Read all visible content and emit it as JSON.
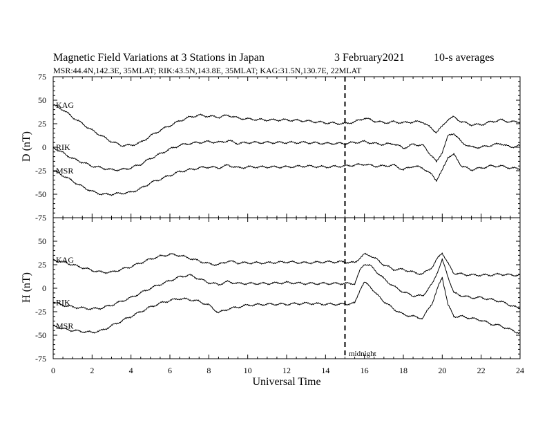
{
  "header": {
    "title": "Magnetic Field Variations at 3 Stations in Japan",
    "date": "3   February2021",
    "averaging": "10-s averages",
    "stations_info": "MSR:44.4N,142.3E, 35MLAT;  RIK:43.5N,143.8E, 35MLAT;  KAG:31.5N,130.7E, 22MLAT"
  },
  "chart_data": [
    {
      "type": "line",
      "ylabel": "D (nT)",
      "ylim": [
        -75,
        75
      ],
      "yticks": [
        75,
        50,
        25,
        0,
        -25,
        -50,
        -75
      ],
      "xlim": [
        0,
        24
      ],
      "series": [
        {
          "name": "KAG",
          "x": [
            0,
            0.5,
            1,
            1.5,
            2,
            2.5,
            3,
            3.5,
            4,
            4.5,
            5,
            5.5,
            6,
            6.5,
            7,
            7.5,
            8,
            8.5,
            9,
            9.5,
            10,
            11,
            12,
            13,
            14,
            15,
            15.5,
            16,
            16.5,
            17,
            17.5,
            18,
            18.5,
            19,
            19.5,
            19.7,
            20,
            20.3,
            20.6,
            21,
            21.5,
            22,
            22.5,
            23,
            23.5,
            24
          ],
          "values": [
            45,
            40,
            32,
            25,
            18,
            12,
            6,
            2,
            2,
            5,
            12,
            18,
            23,
            28,
            32,
            34,
            33,
            32,
            34,
            31,
            30,
            29,
            29,
            28,
            26,
            25,
            27,
            31,
            28,
            26,
            27,
            26,
            27,
            27,
            19,
            16,
            22,
            30,
            32,
            27,
            24,
            24,
            27,
            29,
            27,
            27
          ]
        },
        {
          "name": "RIK",
          "x": [
            0,
            0.5,
            1,
            1.5,
            2,
            2.5,
            3,
            3.5,
            4,
            4.5,
            5,
            5.5,
            6,
            6.5,
            7,
            7.5,
            8,
            8.5,
            9,
            9.5,
            10,
            11,
            12,
            13,
            14,
            15,
            15.5,
            16,
            16.5,
            17,
            17.5,
            18,
            18.5,
            19,
            19.5,
            19.7,
            20,
            20.3,
            20.6,
            21,
            21.5,
            22,
            22.5,
            23,
            23.5,
            24
          ],
          "values": [
            0,
            -6,
            -12,
            -16,
            -20,
            -22,
            -24,
            -24,
            -22,
            -18,
            -12,
            -7,
            -2,
            2,
            4,
            5,
            6,
            5,
            7,
            4,
            5,
            5,
            5,
            5,
            4,
            4,
            5,
            6,
            4,
            3,
            4,
            -1,
            3,
            2,
            -10,
            -16,
            -5,
            12,
            15,
            5,
            0,
            0,
            2,
            4,
            0,
            2
          ]
        },
        {
          "name": "MSR",
          "x": [
            0,
            0.5,
            1,
            1.5,
            2,
            2.5,
            3,
            3.5,
            4,
            4.5,
            5,
            5.5,
            6,
            6.5,
            7,
            7.5,
            8,
            8.5,
            9,
            9.5,
            10,
            11,
            12,
            13,
            14,
            15,
            15.5,
            16,
            16.5,
            17,
            17.5,
            18,
            18.5,
            19,
            19.5,
            19.7,
            20,
            20.3,
            20.6,
            21,
            21.5,
            22,
            22.5,
            23,
            23.5,
            24
          ],
          "values": [
            -25,
            -30,
            -36,
            -42,
            -47,
            -50,
            -50,
            -49,
            -48,
            -44,
            -38,
            -34,
            -30,
            -26,
            -24,
            -22,
            -21,
            -22,
            -19,
            -22,
            -21,
            -21,
            -21,
            -20,
            -21,
            -20,
            -19,
            -18,
            -20,
            -20,
            -19,
            -24,
            -20,
            -22,
            -30,
            -35,
            -25,
            -10,
            -8,
            -20,
            -24,
            -22,
            -20,
            -20,
            -22,
            -23
          ]
        }
      ]
    },
    {
      "type": "line",
      "ylabel": "H (nT)",
      "ylim": [
        -75,
        75
      ],
      "yticks": [
        50,
        25,
        0,
        -25,
        -50,
        -75
      ],
      "xlim": [
        0,
        24
      ],
      "xticks": [
        0,
        2,
        4,
        6,
        8,
        10,
        12,
        14,
        16,
        18,
        20,
        22,
        24
      ],
      "xlabel": "Universal Time",
      "series": [
        {
          "name": "KAG",
          "x": [
            0,
            0.5,
            1,
            1.5,
            2,
            2.5,
            3,
            3.5,
            4,
            4.5,
            5,
            5.5,
            6,
            6.5,
            7,
            7.5,
            8,
            8.5,
            9,
            9.5,
            10,
            11,
            12,
            13,
            14,
            15,
            15.5,
            15.8,
            16,
            16.3,
            16.6,
            17,
            17.5,
            18,
            18.5,
            19,
            19.5,
            19.8,
            20,
            20.3,
            20.6,
            21,
            21.5,
            22,
            22.5,
            23,
            23.5,
            24
          ],
          "values": [
            30,
            28,
            25,
            22,
            19,
            17,
            17,
            20,
            23,
            27,
            31,
            34,
            36,
            35,
            32,
            29,
            26,
            25,
            29,
            27,
            27,
            27,
            28,
            27,
            28,
            28,
            27,
            33,
            36,
            35,
            31,
            25,
            20,
            20,
            17,
            15,
            23,
            33,
            38,
            26,
            16,
            15,
            14,
            14,
            14,
            15,
            14,
            14
          ]
        },
        {
          "name": "RIK",
          "x": [
            0,
            0.5,
            1,
            1.5,
            2,
            2.5,
            3,
            3.5,
            4,
            4.5,
            5,
            5.5,
            6,
            6.5,
            7,
            7.5,
            8,
            8.5,
            9,
            9.5,
            10,
            11,
            12,
            13,
            14,
            15,
            15.5,
            15.8,
            16,
            16.3,
            16.6,
            17,
            17.5,
            18,
            18.5,
            19,
            19.5,
            19.8,
            20,
            20.3,
            20.6,
            21,
            21.5,
            22,
            22.5,
            23,
            23.5,
            24
          ],
          "values": [
            -15,
            -18,
            -20,
            -21,
            -22,
            -21,
            -18,
            -14,
            -10,
            -5,
            0,
            4,
            8,
            12,
            14,
            10,
            6,
            4,
            7,
            5,
            5,
            5,
            6,
            5,
            5,
            5,
            5,
            20,
            26,
            24,
            18,
            10,
            2,
            -4,
            -8,
            -8,
            5,
            20,
            30,
            12,
            -5,
            -8,
            -10,
            -10,
            -12,
            -14,
            -18,
            -22
          ]
        },
        {
          "name": "MSR",
          "x": [
            0,
            0.5,
            1,
            1.5,
            2,
            2.5,
            3,
            3.5,
            4,
            4.5,
            5,
            5.5,
            6,
            6.5,
            7,
            7.5,
            8,
            8.5,
            9,
            9.5,
            10,
            11,
            12,
            13,
            14,
            15,
            15.5,
            15.8,
            16,
            16.3,
            16.6,
            17,
            17.5,
            18,
            18.5,
            19,
            19.5,
            19.8,
            20,
            20.3,
            20.6,
            21,
            21.5,
            22,
            22.5,
            23,
            23.5,
            24
          ],
          "values": [
            -40,
            -43,
            -45,
            -46,
            -47,
            -45,
            -40,
            -35,
            -30,
            -25,
            -20,
            -16,
            -13,
            -11,
            -12,
            -14,
            -18,
            -26,
            -22,
            -20,
            -18,
            -17,
            -17,
            -16,
            -17,
            -17,
            -16,
            0,
            6,
            2,
            -6,
            -14,
            -22,
            -28,
            -30,
            -32,
            -15,
            2,
            12,
            -18,
            -30,
            -30,
            -32,
            -34,
            -38,
            -40,
            -44,
            -48
          ]
        }
      ]
    }
  ],
  "annotations": {
    "midnight_label": "midnight",
    "midnight_ut": 15
  }
}
